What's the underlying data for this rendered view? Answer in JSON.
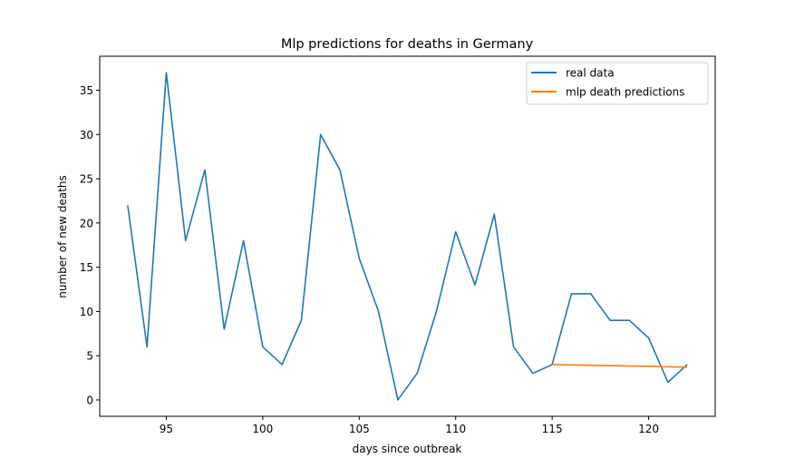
{
  "chart_data": {
    "type": "line",
    "title": "Mlp predictions for deaths in  Germany",
    "xlabel": "days since outbreak",
    "ylabel": "number of new deaths",
    "xlim": [
      91.55,
      123.45
    ],
    "ylim": [
      -1.85,
      38.85
    ],
    "xticks": [
      95,
      100,
      105,
      110,
      115,
      120
    ],
    "yticks": [
      0,
      5,
      10,
      15,
      20,
      25,
      30,
      35
    ],
    "grid": false,
    "legend_position": "top-right",
    "series": [
      {
        "name": "real data",
        "color": "#1f77b4",
        "x": [
          93,
          94,
          95,
          96,
          97,
          98,
          99,
          100,
          101,
          102,
          103,
          104,
          105,
          106,
          107,
          108,
          109,
          110,
          111,
          112,
          113,
          114,
          115,
          116,
          117,
          118,
          119,
          120,
          121,
          122
        ],
        "y": [
          22,
          6,
          37,
          18,
          26,
          8,
          18,
          6,
          4,
          9,
          30,
          26,
          16,
          10,
          0,
          3,
          10,
          19,
          13,
          21,
          6,
          3,
          4,
          12,
          12,
          9,
          9,
          7,
          2,
          4
        ]
      },
      {
        "name": "mlp death predictions",
        "color": "#ff7f0e",
        "x": [
          115,
          122
        ],
        "y": [
          4.0,
          3.7
        ]
      }
    ]
  }
}
